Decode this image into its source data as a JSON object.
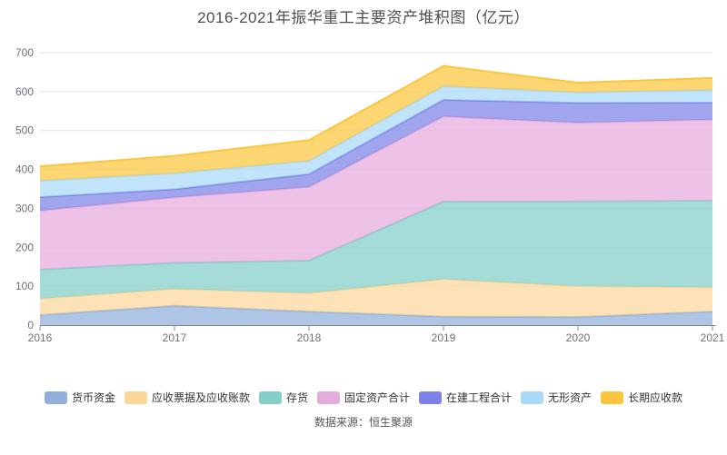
{
  "chart_data": {
    "type": "area",
    "stacked": true,
    "title": "2016-2021年振华重工主要资产堆积图（亿元）",
    "source": "数据来源：恒生聚源",
    "categories": [
      "2016",
      "2017",
      "2018",
      "2019",
      "2020",
      "2021"
    ],
    "xlabel": "",
    "ylabel": "",
    "ylim": [
      0,
      700
    ],
    "ytick_interval": 100,
    "grid": true,
    "legend_position": "bottom",
    "colors": {
      "gridline": "#E0E6F1",
      "axis": "#81858D",
      "tick_label": "#6E7079",
      "title_text": "#4f4f4f",
      "legend_text": "#333333",
      "background": "#ffffff"
    },
    "series": [
      {
        "name": "货币资金",
        "color": "#90AFDB",
        "values": [
          26,
          50,
          35,
          22,
          21,
          35
        ]
      },
      {
        "name": "应收票据及应收账款",
        "color": "#FBD79A",
        "values": [
          42,
          43,
          47,
          96,
          79,
          62
        ]
      },
      {
        "name": "存货",
        "color": "#82CFC8",
        "values": [
          75,
          67,
          84,
          199,
          218,
          223
        ]
      },
      {
        "name": "固定资产合计",
        "color": "#E6ABDD",
        "values": [
          151,
          168,
          189,
          219,
          202,
          208
        ]
      },
      {
        "name": "在建工程合计",
        "color": "#7C82E8",
        "values": [
          35,
          21,
          33,
          43,
          51,
          44
        ]
      },
      {
        "name": "无形资产",
        "color": "#A9D9F8",
        "values": [
          42,
          41,
          34,
          35,
          27,
          32
        ]
      },
      {
        "name": "长期应收款",
        "color": "#FBC63D",
        "values": [
          37,
          45,
          53,
          52,
          25,
          31
        ]
      }
    ],
    "cumulative_totals": [
      408,
      435,
      475,
      666,
      623,
      635
    ]
  }
}
